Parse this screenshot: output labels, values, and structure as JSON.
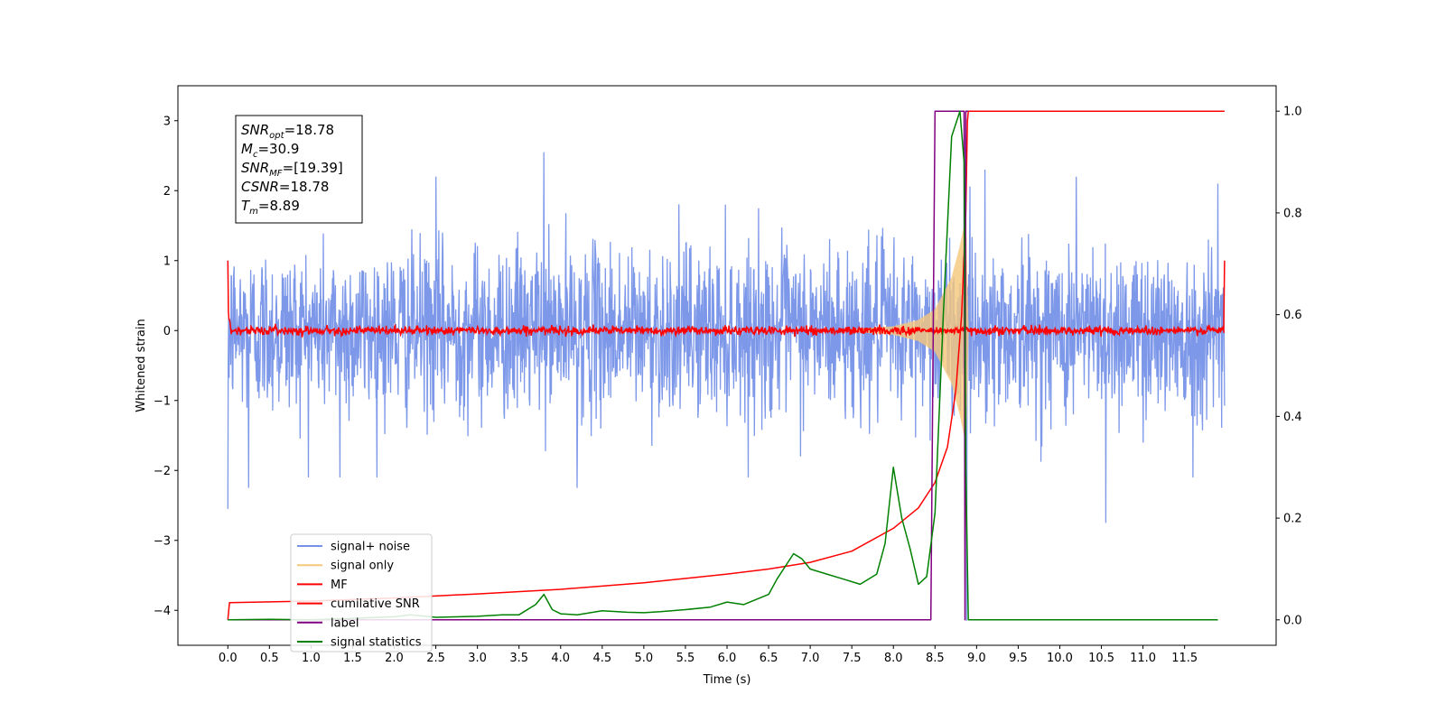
{
  "chart_data": {
    "type": "line",
    "xlabel": "Time (s)",
    "ylabel": "Whitened strain",
    "xlim": [
      -0.6,
      12.6
    ],
    "ylim": [
      -4.5,
      3.5
    ],
    "y2lim": [
      -0.05,
      1.05
    ],
    "x_ticks": [
      0.0,
      0.5,
      1.0,
      1.5,
      2.0,
      2.5,
      3.0,
      3.5,
      4.0,
      4.5,
      5.0,
      5.5,
      6.0,
      6.5,
      7.0,
      7.5,
      8.0,
      8.5,
      9.0,
      9.5,
      10.0,
      10.5,
      11.0,
      11.5
    ],
    "x_tick_labels": [
      "0.0",
      "0.5",
      "1.0",
      "1.5",
      "2.0",
      "2.5",
      "3.0",
      "3.5",
      "4.0",
      "4.5",
      "5.0",
      "5.5",
      "6.0",
      "6.5",
      "7.0",
      "7.5",
      "8.0",
      "8.5",
      "9.0",
      "9.5",
      "10.0",
      "10.5",
      "11.0",
      "11.5"
    ],
    "y_ticks": [
      -4,
      -3,
      -2,
      -1,
      0,
      1,
      2,
      3
    ],
    "y_tick_labels": [
      "−4",
      "−3",
      "−2",
      "−1",
      "0",
      "1",
      "2",
      "3"
    ],
    "y2_ticks": [
      0.0,
      0.2,
      0.4,
      0.6,
      0.8,
      1.0
    ],
    "y2_tick_labels": [
      "0.0",
      "0.2",
      "0.4",
      "0.6",
      "0.8",
      "1.0"
    ],
    "grid": false,
    "legend_position": "lower-left",
    "info_box": {
      "snr_opt": "=18.78",
      "mc": "=30.9",
      "snr_mf": "=[19.39]",
      "csnr": "=18.78",
      "tm": "=8.89"
    },
    "series": [
      {
        "name": "signal+ noise",
        "color": "#7692e8",
        "axis": "left",
        "noise_sigma": 0.6,
        "x_range": [
          0.0,
          11.98
        ],
        "spikes": [
          [
            0.0,
            -2.55
          ],
          [
            0.25,
            -2.25
          ],
          [
            1.35,
            -2.1
          ],
          [
            2.5,
            2.2
          ],
          [
            3.8,
            2.55
          ],
          [
            4.2,
            -2.25
          ],
          [
            8.85,
            2.8
          ],
          [
            8.88,
            -4.15
          ],
          [
            9.1,
            2.3
          ],
          [
            10.2,
            2.2
          ],
          [
            10.55,
            -2.75
          ],
          [
            11.6,
            -2.1
          ],
          [
            11.9,
            2.1
          ]
        ]
      },
      {
        "name": "signal only",
        "color": "#f5c77a",
        "axis": "left",
        "description_points": [
          [
            7.5,
            0.02
          ],
          [
            8.0,
            0.06
          ],
          [
            8.3,
            0.15
          ],
          [
            8.5,
            0.3
          ],
          [
            8.7,
            0.75
          ],
          [
            8.8,
            1.2
          ],
          [
            8.87,
            1.6
          ],
          [
            8.9,
            0.0
          ]
        ]
      },
      {
        "name": "MF",
        "color": "#ff0000",
        "axis": "left",
        "start_value": 1.0,
        "baseline_value": 0.0,
        "end_value": 1.0,
        "x_range": [
          0.0,
          11.98
        ]
      },
      {
        "name": "cumilative SNR",
        "color": "#ff0000",
        "axis": "right",
        "points": [
          [
            0.0,
            0.0
          ],
          [
            0.02,
            0.034
          ],
          [
            1.0,
            0.037
          ],
          [
            2.0,
            0.043
          ],
          [
            3.0,
            0.051
          ],
          [
            4.0,
            0.06
          ],
          [
            5.0,
            0.073
          ],
          [
            6.0,
            0.09
          ],
          [
            6.5,
            0.1
          ],
          [
            7.0,
            0.113
          ],
          [
            7.5,
            0.135
          ],
          [
            8.0,
            0.18
          ],
          [
            8.3,
            0.22
          ],
          [
            8.5,
            0.27
          ],
          [
            8.65,
            0.34
          ],
          [
            8.75,
            0.45
          ],
          [
            8.82,
            0.6
          ],
          [
            8.87,
            0.8
          ],
          [
            8.89,
            0.98
          ],
          [
            8.9,
            1.0
          ],
          [
            11.98,
            1.0
          ]
        ]
      },
      {
        "name": "label",
        "color": "#800080",
        "axis": "right",
        "points": [
          [
            0.0,
            0.0
          ],
          [
            8.45,
            0.0
          ],
          [
            8.5,
            1.0
          ],
          [
            8.85,
            1.0
          ],
          [
            8.86,
            0.0
          ],
          [
            8.87,
            1.0
          ],
          [
            8.9,
            1.0
          ]
        ]
      },
      {
        "name": "signal statistics",
        "color": "#008000",
        "axis": "right",
        "points": [
          [
            0.0,
            0.0
          ],
          [
            0.5,
            0.001
          ],
          [
            1.0,
            0.0
          ],
          [
            1.5,
            0.003
          ],
          [
            2.0,
            0.006
          ],
          [
            2.2,
            0.01
          ],
          [
            2.5,
            0.005
          ],
          [
            3.0,
            0.007
          ],
          [
            3.3,
            0.01
          ],
          [
            3.5,
            0.01
          ],
          [
            3.7,
            0.03
          ],
          [
            3.8,
            0.05
          ],
          [
            3.9,
            0.02
          ],
          [
            4.0,
            0.012
          ],
          [
            4.2,
            0.01
          ],
          [
            4.5,
            0.018
          ],
          [
            4.8,
            0.015
          ],
          [
            5.0,
            0.014
          ],
          [
            5.2,
            0.016
          ],
          [
            5.5,
            0.02
          ],
          [
            5.8,
            0.025
          ],
          [
            6.0,
            0.035
          ],
          [
            6.2,
            0.03
          ],
          [
            6.5,
            0.05
          ],
          [
            6.6,
            0.08
          ],
          [
            6.8,
            0.13
          ],
          [
            6.9,
            0.12
          ],
          [
            7.0,
            0.1
          ],
          [
            7.2,
            0.09
          ],
          [
            7.4,
            0.08
          ],
          [
            7.6,
            0.07
          ],
          [
            7.8,
            0.09
          ],
          [
            7.9,
            0.15
          ],
          [
            8.0,
            0.3
          ],
          [
            8.1,
            0.2
          ],
          [
            8.2,
            0.14
          ],
          [
            8.3,
            0.07
          ],
          [
            8.4,
            0.085
          ],
          [
            8.5,
            0.21
          ],
          [
            8.6,
            0.6
          ],
          [
            8.7,
            0.95
          ],
          [
            8.8,
            1.0
          ],
          [
            8.85,
            0.9
          ],
          [
            8.87,
            0.3
          ],
          [
            8.9,
            0.0
          ],
          [
            11.9,
            0.0
          ]
        ]
      }
    ]
  }
}
